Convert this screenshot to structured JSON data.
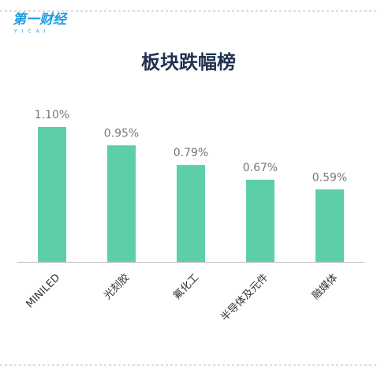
{
  "logo": "第一财经",
  "logo_sub": "YICAI",
  "chart_data": {
    "type": "bar",
    "title": "板块跌幅榜",
    "categories": [
      "MINILED",
      "光刻胶",
      "氟化工",
      "半导体及元件",
      "融媒体"
    ],
    "values": [
      1.1,
      0.95,
      0.79,
      0.67,
      0.59
    ],
    "value_labels": [
      "1.10%",
      "0.95%",
      "0.79%",
      "0.67%",
      "0.59%"
    ],
    "color": "#5ccfa8"
  }
}
